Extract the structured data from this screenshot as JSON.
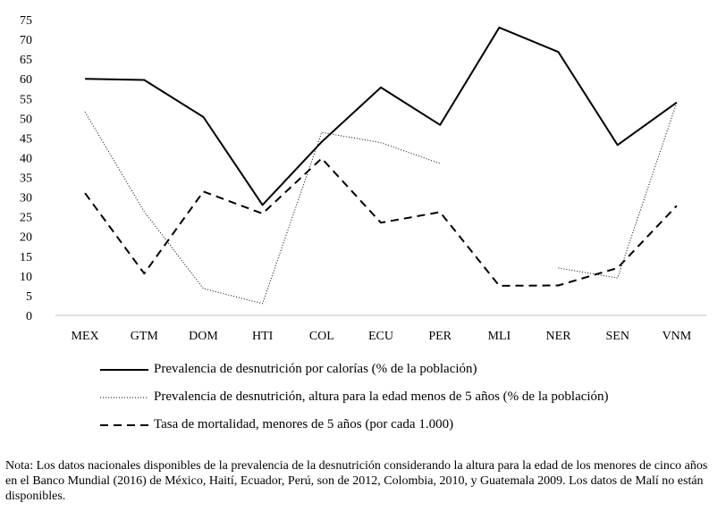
{
  "chart_data": {
    "type": "line",
    "categories": [
      "MEX",
      "GTM",
      "DOM",
      "HTI",
      "COL",
      "ECU",
      "PER",
      "MLI",
      "NER",
      "SEN",
      "VNM"
    ],
    "ylim": [
      0,
      75
    ],
    "yticks": [
      0,
      5,
      10,
      15,
      20,
      25,
      30,
      35,
      40,
      45,
      50,
      55,
      60,
      65,
      70,
      75
    ],
    "grid": false,
    "legend_position": "bottom",
    "series": [
      {
        "name": "Prevalencia de desnutrición por calorías (% de la población)",
        "style": "solid",
        "color": "#000000",
        "values": [
          60,
          59.7,
          50.3,
          28,
          44,
          57.8,
          48.3,
          73,
          66.8,
          43.2,
          54
        ]
      },
      {
        "name": "Prevalencia de desnutrición, altura para la edad menos de 5 años (% de la población)",
        "style": "dotted",
        "color": "#000000",
        "values": [
          51.6,
          26.3,
          6.8,
          3,
          46.4,
          43.8,
          38.5,
          null,
          12,
          9.5,
          54
        ]
      },
      {
        "name": "Tasa de mortalidad, menores de 5 años (por cada 1.000)",
        "style": "dashed",
        "color": "#000000",
        "values": [
          31,
          10.6,
          31.4,
          25.8,
          39.8,
          23.5,
          26.2,
          7.5,
          7.6,
          12,
          27.8
        ]
      }
    ]
  },
  "note": "Nota: Los datos nacionales disponibles de la prevalencia de la desnutrición considerando la altura para la edad de los menores de cinco años en el Banco Mundial (2016) de México, Haití, Ecuador, Perú, son de 2012, Colombia, 2010, y Guatemala 2009. Los datos de Malí no están disponibles."
}
